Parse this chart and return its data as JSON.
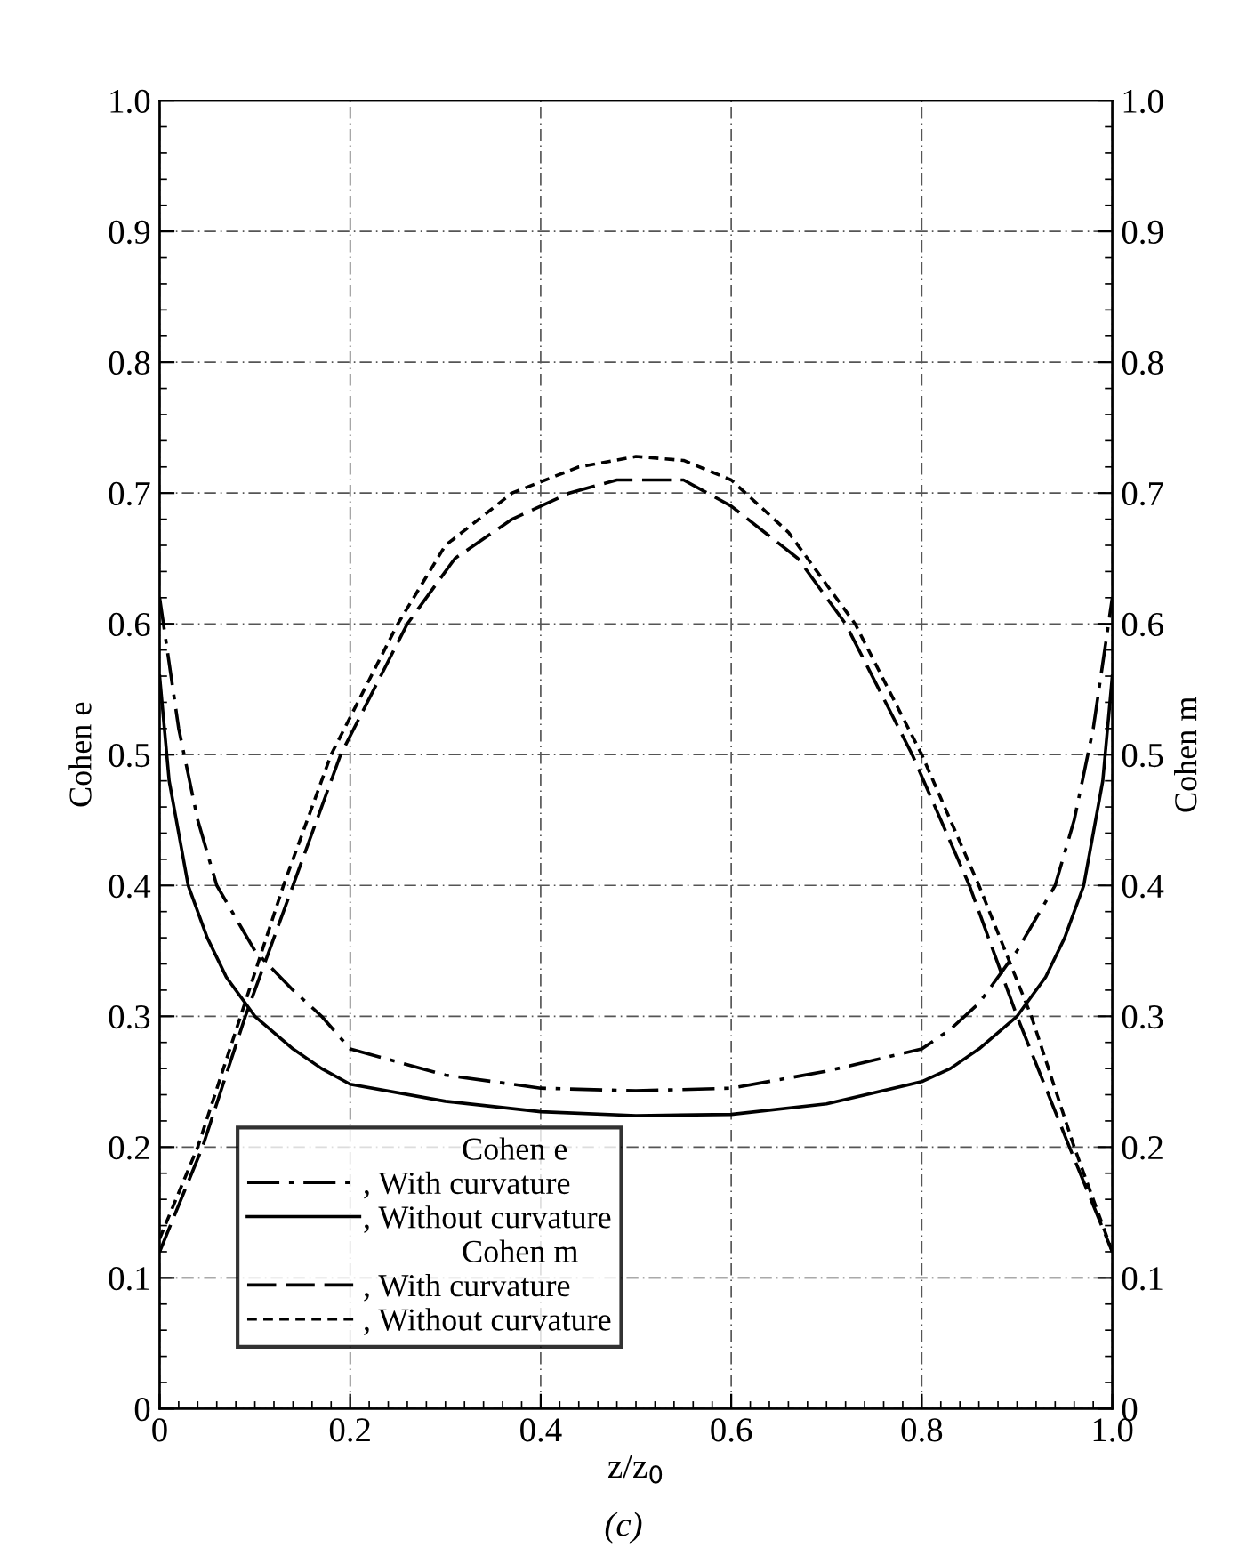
{
  "chart_data": {
    "type": "line",
    "xlabel": "z/z$_{0}$",
    "ylabel": "Cohen e",
    "y2label": "Cohen m",
    "annotations": [
      "Cohen e",
      "Cohen m",
      "(c)"
    ],
    "series": [
      {
        "name": ", With curvature",
        "color": "#000000",
        "line_style": "dashdot",
        "x": [
          0,
          0.02,
          0.04,
          0.06,
          0.1,
          0.14,
          0.17,
          0.2,
          0.3,
          0.4,
          0.5,
          0.6,
          0.7,
          0.8,
          0.83,
          0.86,
          0.9,
          0.94,
          0.96,
          0.98,
          1.0
        ],
        "values": [
          0.62,
          0.52,
          0.45,
          0.4,
          0.35,
          0.32,
          0.3,
          0.275,
          0.255,
          0.245,
          0.243,
          0.245,
          0.258,
          0.275,
          0.29,
          0.31,
          0.35,
          0.4,
          0.45,
          0.52,
          0.62
        ]
      },
      {
        "name": ", Without curvature",
        "color": "#000000",
        "line_style": "solid",
        "x": [
          0,
          0.01,
          0.03,
          0.05,
          0.07,
          0.1,
          0.14,
          0.17,
          0.2,
          0.3,
          0.4,
          0.5,
          0.6,
          0.7,
          0.8,
          0.83,
          0.86,
          0.9,
          0.93,
          0.95,
          0.97,
          0.99,
          1.0
        ],
        "values": [
          0.56,
          0.48,
          0.4,
          0.36,
          0.33,
          0.3,
          0.275,
          0.26,
          0.248,
          0.235,
          0.227,
          0.224,
          0.225,
          0.233,
          0.25,
          0.26,
          0.275,
          0.3,
          0.33,
          0.36,
          0.4,
          0.48,
          0.56
        ]
      },
      {
        "name": ", With curvature",
        "color": "#000000",
        "line_style": "dashed",
        "axis": "y2",
        "x": [
          0,
          0.045,
          0.09,
          0.14,
          0.19,
          0.26,
          0.31,
          0.37,
          0.43,
          0.48,
          0.55,
          0.6,
          0.67,
          0.72,
          0.79,
          0.85,
          0.9,
          0.955,
          1.0
        ],
        "values": [
          0.12,
          0.2,
          0.3,
          0.4,
          0.5,
          0.6,
          0.65,
          0.68,
          0.7,
          0.71,
          0.71,
          0.69,
          0.65,
          0.6,
          0.5,
          0.4,
          0.3,
          0.2,
          0.12
        ]
      },
      {
        "name": ", Without curvature",
        "color": "#000000",
        "line_style": "dotted",
        "axis": "y2",
        "x": [
          0,
          0.04,
          0.085,
          0.13,
          0.18,
          0.25,
          0.3,
          0.37,
          0.44,
          0.5,
          0.55,
          0.6,
          0.66,
          0.73,
          0.8,
          0.86,
          0.915,
          0.96,
          1.0
        ],
        "values": [
          0.13,
          0.2,
          0.3,
          0.4,
          0.5,
          0.6,
          0.66,
          0.7,
          0.72,
          0.728,
          0.725,
          0.71,
          0.67,
          0.6,
          0.5,
          0.4,
          0.3,
          0.2,
          0.12
        ]
      }
    ],
    "xlim": [
      0,
      1.0
    ],
    "xticks": [
      0,
      0.2,
      0.4,
      0.6,
      0.8,
      {
        "value": 1.0,
        "label": "1.0"
      }
    ],
    "ylim": [
      0,
      1.0
    ],
    "yticks": [
      0,
      0.1,
      0.2,
      0.3,
      0.4,
      0.5,
      0.6,
      0.7,
      0.8,
      0.9,
      {
        "value": 1.0,
        "label": "1.0"
      }
    ],
    "y2lim": [
      0,
      1.0
    ],
    "y2ticks": [
      0,
      0.1,
      0.2,
      0.3,
      0.4,
      0.5,
      0.6,
      0.7,
      0.8,
      0.9,
      {
        "value": 1.0,
        "label": "1.0"
      }
    ],
    "grid": true,
    "legend": "bottom left"
  }
}
